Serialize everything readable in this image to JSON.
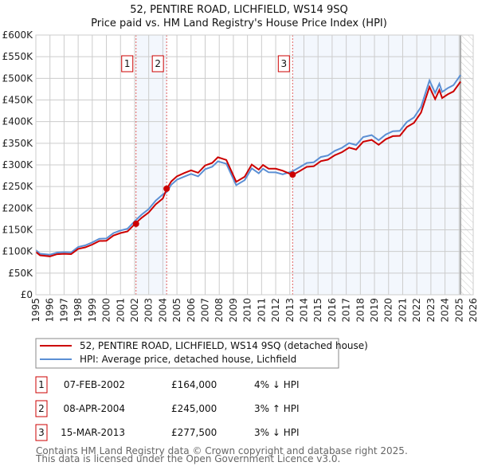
{
  "chart_data": {
    "type": "line",
    "title": "52, PENTIRE ROAD, LICHFIELD, WS14 9SQ",
    "subtitle": "Price paid vs. HM Land Registry's House Price Index (HPI)",
    "xlim": [
      1995,
      2026
    ],
    "ylim": [
      0,
      600000
    ],
    "x_ticks": [
      "1995",
      "1996",
      "1997",
      "1998",
      "1999",
      "2000",
      "2001",
      "2002",
      "2003",
      "2004",
      "2005",
      "2006",
      "2007",
      "2008",
      "2009",
      "2010",
      "2011",
      "2012",
      "2013",
      "2014",
      "2015",
      "2016",
      "2017",
      "2018",
      "2019",
      "2020",
      "2021",
      "2022",
      "2023",
      "2024",
      "2025",
      "2026"
    ],
    "y_ticks": [
      {
        "v": 0,
        "label": "£0"
      },
      {
        "v": 50000,
        "label": "£50K"
      },
      {
        "v": 100000,
        "label": "£100K"
      },
      {
        "v": 150000,
        "label": "£150K"
      },
      {
        "v": 200000,
        "label": "£200K"
      },
      {
        "v": 250000,
        "label": "£250K"
      },
      {
        "v": 300000,
        "label": "£300K"
      },
      {
        "v": 350000,
        "label": "£350K"
      },
      {
        "v": 400000,
        "label": "£400K"
      },
      {
        "v": 450000,
        "label": "£450K"
      },
      {
        "v": 500000,
        "label": "£500K"
      },
      {
        "v": 550000,
        "label": "£550K"
      },
      {
        "v": 600000,
        "label": "£600K"
      }
    ],
    "grid": true,
    "data_end": 2025.1,
    "series": [
      {
        "name": "52, PENTIRE ROAD, LICHFIELD, WS14 9SQ (detached house)",
        "color": "#cc0000",
        "derived_from_hpi": true,
        "ratios": [
          {
            "until": 2002.1,
            "r": 0.96
          },
          {
            "until": 2004.27,
            "r": 0.96
          },
          {
            "until": 2013.2,
            "r": 1.03
          },
          {
            "until": 2026,
            "r": 0.97
          }
        ]
      },
      {
        "name": "HPI: Average price, detached house, Lichfield",
        "color": "#5b8fd4",
        "x": [
          1995,
          1995.3,
          1996,
          1996.5,
          1997,
          1997.5,
          1998,
          1998.5,
          1999,
          1999.5,
          2000,
          2000.5,
          2001,
          2001.5,
          2002.1,
          2002.5,
          2003,
          2003.5,
          2004,
          2004.27,
          2004.6,
          2005,
          2005.5,
          2006,
          2006.5,
          2007,
          2007.5,
          2007.9,
          2008.5,
          2009.2,
          2009.8,
          2010.3,
          2010.8,
          2011.1,
          2011.5,
          2012,
          2012.5,
          2013.2,
          2013.7,
          2014.2,
          2014.7,
          2015.2,
          2015.7,
          2016.2,
          2016.7,
          2017.2,
          2017.7,
          2018.2,
          2018.8,
          2019.3,
          2019.8,
          2020.3,
          2020.8,
          2021.3,
          2021.8,
          2022.3,
          2022.9,
          2023.3,
          2023.6,
          2023.8,
          2024.2,
          2024.6,
          2025.1
        ],
        "y": [
          103000,
          93000,
          95000,
          96000,
          98000,
          100000,
          108000,
          115000,
          122000,
          127000,
          132000,
          142000,
          147000,
          155000,
          171000,
          185000,
          200000,
          215000,
          233000,
          238000,
          252000,
          268000,
          272000,
          278000,
          276000,
          288000,
          296000,
          310000,
          300000,
          255000,
          265000,
          290000,
          283000,
          290000,
          282000,
          285000,
          276000,
          286000,
          296000,
          302000,
          308000,
          318000,
          320000,
          335000,
          338000,
          350000,
          348000,
          362000,
          370000,
          358000,
          368000,
          380000,
          378000,
          398000,
          412000,
          432000,
          495000,
          468000,
          485000,
          470000,
          478000,
          482000,
          510000
        ]
      }
    ],
    "sales": [
      {
        "id": "1",
        "x": 2002.1,
        "price": 164000,
        "date": "07-FEB-2002",
        "price_label": "£164,000",
        "hpi": "4% ↓ HPI"
      },
      {
        "id": "2",
        "x": 2004.27,
        "price": 245000,
        "date": "08-APR-2004",
        "price_label": "£245,000",
        "hpi": "3% ↑ HPI"
      },
      {
        "id": "3",
        "x": 2013.2,
        "price": 277500,
        "date": "15-MAR-2013",
        "price_label": "£277,500",
        "hpi": "3% ↓ HPI"
      }
    ],
    "shaded_periods": [
      [
        2002.1,
        2004.27
      ],
      [
        2013.2,
        2025.1
      ]
    ]
  },
  "footer": {
    "line1": "Contains HM Land Registry data © Crown copyright and database right 2025.",
    "line2": "This data is licensed under the Open Government Licence v3.0."
  }
}
